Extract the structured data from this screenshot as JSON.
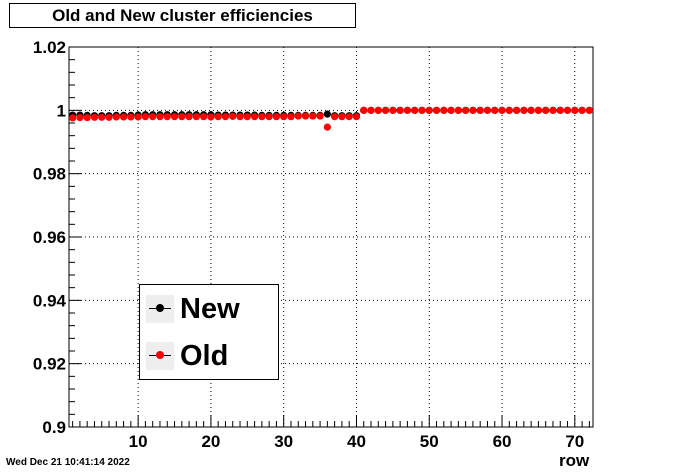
{
  "title": "Old and New cluster efficiencies",
  "timestamp": "Wed Dec 21 10:41:14 2022",
  "colors": {
    "new": "#000000",
    "old": "#ff0000",
    "grid": "#000000"
  },
  "chart_data": {
    "type": "scatter",
    "title": "Old and New cluster efficiencies",
    "xlabel": "row",
    "ylabel": "",
    "xlim": [
      0.5,
      72.5
    ],
    "ylim": [
      0.9,
      1.02
    ],
    "x_ticks": [
      10,
      20,
      30,
      40,
      50,
      60,
      70
    ],
    "x_tick_labels": [
      "10",
      "20",
      "30",
      "40",
      "50",
      "60",
      "70"
    ],
    "y_ticks": [
      0.9,
      0.92,
      0.94,
      0.96,
      0.98,
      1,
      1.02
    ],
    "y_tick_labels": [
      "0.9",
      "0.92",
      "0.94",
      "0.96",
      "0.98",
      "1",
      "1.02"
    ],
    "grid": true,
    "legend_position": "bottom-left",
    "series": [
      {
        "name": "New",
        "color": "#000000",
        "x": [
          1,
          2,
          3,
          4,
          5,
          6,
          7,
          8,
          9,
          10,
          11,
          12,
          13,
          14,
          15,
          16,
          17,
          18,
          19,
          20,
          21,
          22,
          23,
          24,
          25,
          26,
          27,
          28,
          29,
          30,
          31,
          32,
          33,
          34,
          35,
          36,
          37,
          38,
          39,
          40,
          41,
          42,
          43,
          44,
          45,
          46,
          47,
          48,
          49,
          50,
          51,
          52,
          53,
          54,
          55,
          56,
          57,
          58,
          59,
          60,
          61,
          62,
          63,
          64,
          65,
          66,
          67,
          68,
          69,
          70,
          71,
          72
        ],
        "y": [
          0.9985,
          0.9985,
          0.9984,
          0.9983,
          0.9983,
          0.9983,
          0.9984,
          0.9984,
          0.9984,
          0.9985,
          0.9986,
          0.9986,
          0.9986,
          0.9986,
          0.9986,
          0.9986,
          0.9986,
          0.9986,
          0.9986,
          0.9986,
          0.9985,
          0.9985,
          0.9985,
          0.9985,
          0.9985,
          0.9985,
          0.9984,
          0.9984,
          0.9984,
          0.9984,
          0.9984,
          0.9984,
          0.9984,
          0.9984,
          0.9984,
          0.9988,
          0.9983,
          0.9983,
          0.9983,
          0.9983,
          1,
          1,
          1,
          1,
          1,
          1,
          1,
          1,
          1,
          1,
          1,
          1,
          1,
          1,
          1,
          1,
          1,
          1,
          1,
          1,
          1,
          1,
          1,
          1,
          1,
          1,
          1,
          1,
          1,
          1,
          1,
          1
        ]
      },
      {
        "name": "Old",
        "color": "#ff0000",
        "x": [
          1,
          2,
          3,
          4,
          5,
          6,
          7,
          8,
          9,
          10,
          11,
          12,
          13,
          14,
          15,
          16,
          17,
          18,
          19,
          20,
          21,
          22,
          23,
          24,
          25,
          26,
          27,
          28,
          29,
          30,
          31,
          32,
          33,
          34,
          35,
          36,
          37,
          38,
          39,
          40,
          41,
          42,
          43,
          44,
          45,
          46,
          47,
          48,
          49,
          50,
          51,
          52,
          53,
          54,
          55,
          56,
          57,
          58,
          59,
          60,
          61,
          62,
          63,
          64,
          65,
          66,
          67,
          68,
          69,
          70,
          71,
          72
        ],
        "y": [
          0.9976,
          0.9977,
          0.9977,
          0.9978,
          0.9978,
          0.9978,
          0.9979,
          0.9979,
          0.9979,
          0.9979,
          0.998,
          0.998,
          0.998,
          0.998,
          0.998,
          0.998,
          0.998,
          0.998,
          0.998,
          0.9979,
          0.998,
          0.998,
          0.9981,
          0.998,
          0.998,
          0.998,
          0.998,
          0.998,
          0.998,
          0.998,
          0.998,
          0.9982,
          0.9982,
          0.9982,
          0.9982,
          0.9947,
          0.998,
          0.998,
          0.998,
          0.998,
          1,
          1,
          1,
          1,
          1,
          1,
          1,
          1,
          1,
          1,
          1,
          1,
          1,
          1,
          1,
          1,
          1,
          1,
          1,
          1,
          1,
          1,
          1,
          1,
          1,
          1,
          1,
          1,
          1,
          1,
          1,
          1
        ]
      }
    ]
  }
}
